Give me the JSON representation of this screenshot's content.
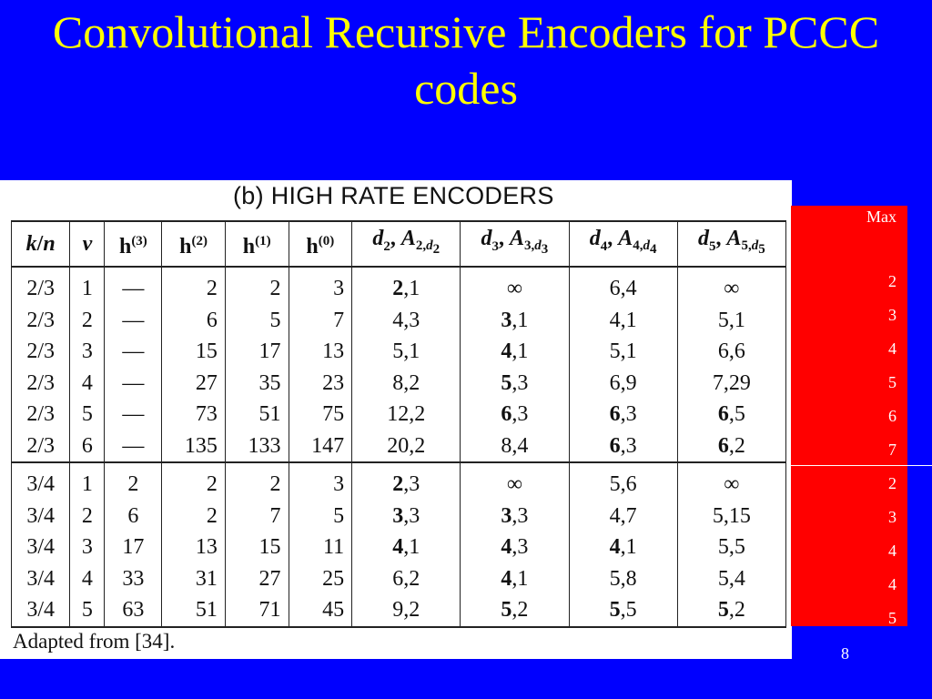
{
  "slide": {
    "title": "Convolutional Recursive Encoders for PCCC codes",
    "page_number": "8"
  },
  "scan": {
    "subtitle": "(b) HIGH RATE ENCODERS",
    "credit": "Adapted from [34]."
  },
  "table": {
    "headers": [
      "k/n",
      "v",
      "h(3)",
      "h(2)",
      "h(1)",
      "h(0)",
      "d2, A2,d2",
      "d3, A3,d3",
      "d4, A4,d4",
      "d5, A5,d5"
    ],
    "rows": [
      {
        "kn": "2/3",
        "v": "1",
        "h3": "—",
        "h2": "2",
        "h1": "2",
        "h0": "3",
        "d2b": "2",
        "d2r": ",1",
        "d3b": "",
        "d3r": "∞",
        "d4b": "",
        "d4r": "6,4",
        "d5b": "",
        "d5r": "∞"
      },
      {
        "kn": "2/3",
        "v": "2",
        "h3": "—",
        "h2": "6",
        "h1": "5",
        "h0": "7",
        "d2b": "",
        "d2r": "4,3",
        "d3b": "3",
        "d3r": ",1",
        "d4b": "",
        "d4r": "4,1",
        "d5b": "",
        "d5r": "5,1"
      },
      {
        "kn": "2/3",
        "v": "3",
        "h3": "—",
        "h2": "15",
        "h1": "17",
        "h0": "13",
        "d2b": "",
        "d2r": "5,1",
        "d3b": "4",
        "d3r": ",1",
        "d4b": "",
        "d4r": "5,1",
        "d5b": "",
        "d5r": "6,6"
      },
      {
        "kn": "2/3",
        "v": "4",
        "h3": "—",
        "h2": "27",
        "h1": "35",
        "h0": "23",
        "d2b": "",
        "d2r": "8,2",
        "d3b": "5",
        "d3r": ",3",
        "d4b": "",
        "d4r": "6,9",
        "d5b": "",
        "d5r": "7,29"
      },
      {
        "kn": "2/3",
        "v": "5",
        "h3": "—",
        "h2": "73",
        "h1": "51",
        "h0": "75",
        "d2b": "",
        "d2r": "12,2",
        "d3b": "6",
        "d3r": ",3",
        "d4b": "6",
        "d4r": ",3",
        "d5b": "6",
        "d5r": ",5"
      },
      {
        "kn": "2/3",
        "v": "6",
        "h3": "—",
        "h2": "135",
        "h1": "133",
        "h0": "147",
        "d2b": "",
        "d2r": "20,2",
        "d3b": "",
        "d3r": "8,4",
        "d4b": "6",
        "d4r": ",3",
        "d5b": "6",
        "d5r": ",2"
      },
      {
        "kn": "3/4",
        "v": "1",
        "h3": "2",
        "h2": "2",
        "h1": "2",
        "h0": "3",
        "d2b": "2",
        "d2r": ",3",
        "d3b": "",
        "d3r": "∞",
        "d4b": "",
        "d4r": "5,6",
        "d5b": "",
        "d5r": "∞"
      },
      {
        "kn": "3/4",
        "v": "2",
        "h3": "6",
        "h2": "2",
        "h1": "7",
        "h0": "5",
        "d2b": "3",
        "d2r": ",3",
        "d3b": "3",
        "d3r": ",3",
        "d4b": "",
        "d4r": "4,7",
        "d5b": "",
        "d5r": "5,15"
      },
      {
        "kn": "3/4",
        "v": "3",
        "h3": "17",
        "h2": "13",
        "h1": "15",
        "h0": "11",
        "d2b": "4",
        "d2r": ",1",
        "d3b": "4",
        "d3r": ",3",
        "d4b": "4",
        "d4r": ",1",
        "d5b": "",
        "d5r": "5,5"
      },
      {
        "kn": "3/4",
        "v": "4",
        "h3": "33",
        "h2": "31",
        "h1": "27",
        "h0": "25",
        "d2b": "",
        "d2r": "6,2",
        "d3b": "4",
        "d3r": ",1",
        "d4b": "",
        "d4r": "5,8",
        "d5b": "",
        "d5r": "5,4"
      },
      {
        "kn": "3/4",
        "v": "5",
        "h3": "63",
        "h2": "51",
        "h1": "71",
        "h0": "45",
        "d2b": "",
        "d2r": "9,2",
        "d3b": "5",
        "d3r": ",2",
        "d4b": "5",
        "d4r": ",5",
        "d5b": "5",
        "d5r": ",2"
      }
    ]
  },
  "red_panel": {
    "header": "Max",
    "values": [
      "2",
      "3",
      "4",
      "5",
      "6",
      "7",
      "2",
      "3",
      "4",
      "4",
      "5"
    ]
  },
  "colors": {
    "background": "#0000FF",
    "title": "#FFFF00",
    "panel": "#FF0000"
  }
}
